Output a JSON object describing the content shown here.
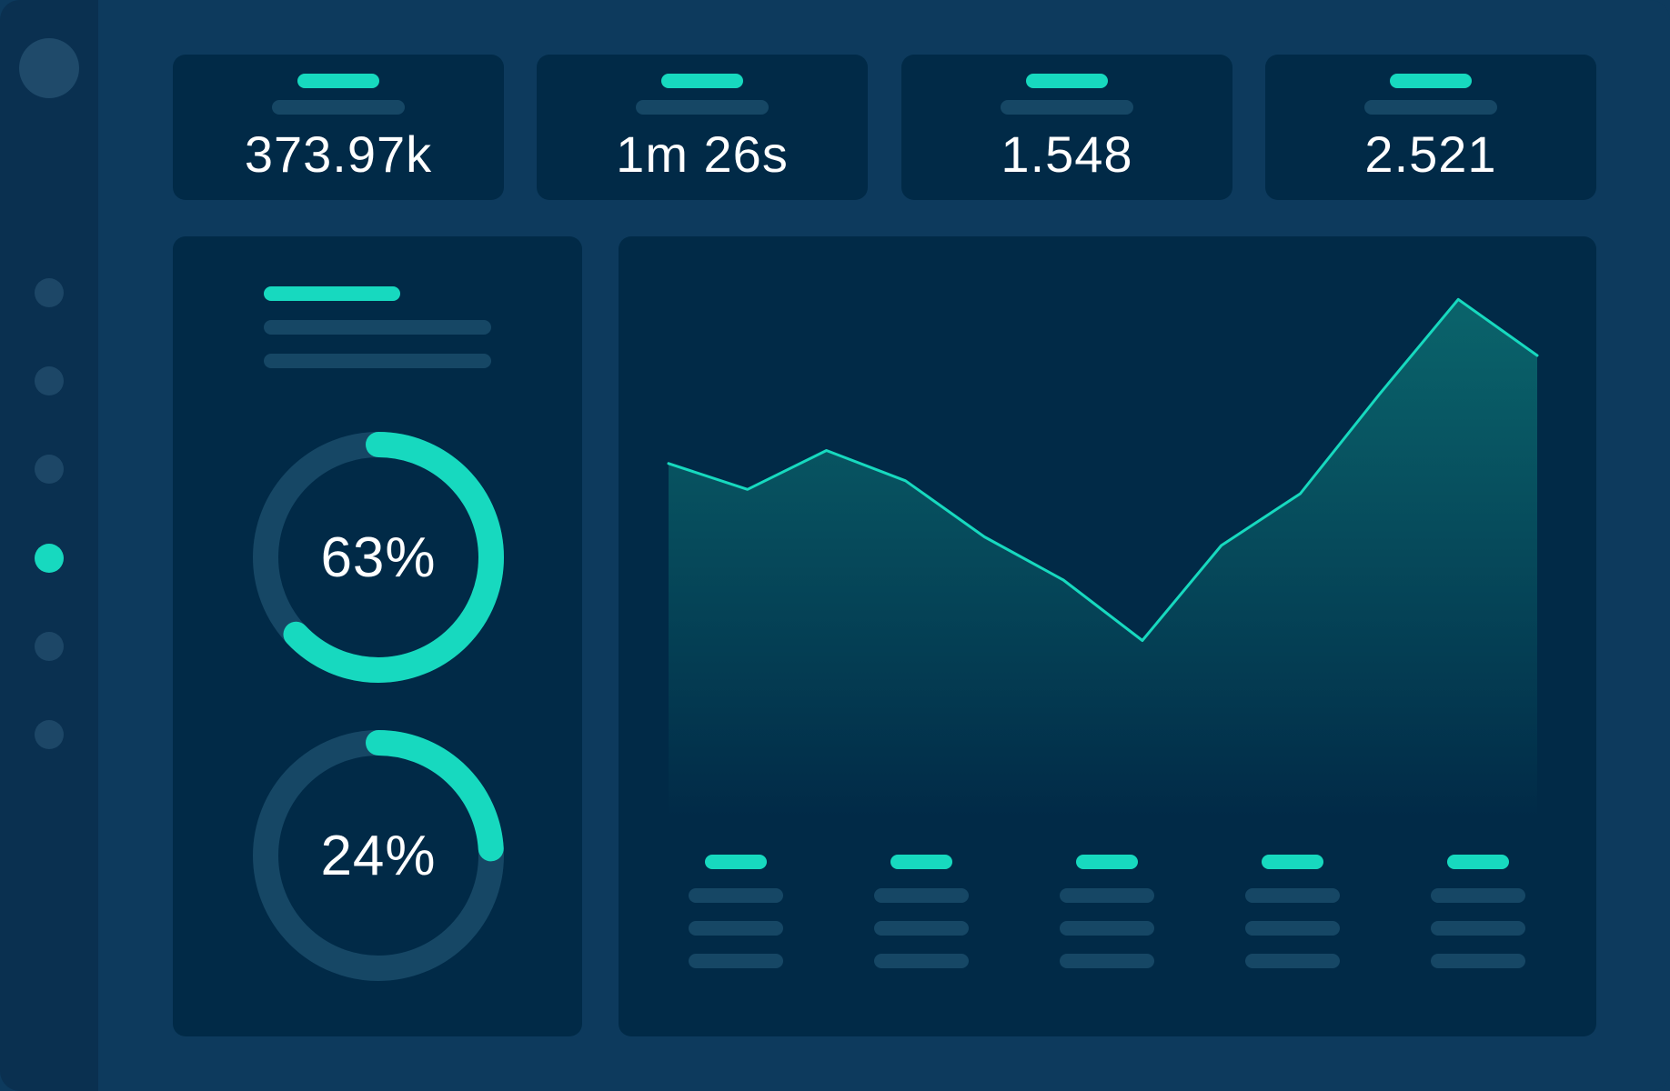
{
  "colors": {
    "background": "#0d3a5d",
    "sidebar": "#0a3050",
    "card": "#012a47",
    "accent": "#17d9bf",
    "muted": "#164765",
    "text": "#ffffff"
  },
  "sidebar": {
    "items": [
      {
        "icon": "nav-dot",
        "active": false
      },
      {
        "icon": "nav-dot",
        "active": false
      },
      {
        "icon": "nav-dot",
        "active": false
      },
      {
        "icon": "nav-dot",
        "active": true
      },
      {
        "icon": "nav-dot",
        "active": false
      },
      {
        "icon": "nav-dot",
        "active": false
      }
    ]
  },
  "kpis": [
    {
      "value": "373.97k"
    },
    {
      "value": "1m 26s"
    },
    {
      "value": "1.548"
    },
    {
      "value": "2.521"
    }
  ],
  "donuts": [
    {
      "label": "63%",
      "percent": 63
    },
    {
      "label": "24%",
      "percent": 24
    }
  ],
  "chart_data": {
    "type": "area",
    "title": "",
    "xlabel": "",
    "ylabel": "",
    "grid": false,
    "values": [
      0.59,
      0.53,
      0.62,
      0.55,
      0.42,
      0.32,
      0.18,
      0.4,
      0.52,
      0.75,
      0.97,
      0.84
    ],
    "ylim": [
      0,
      1
    ]
  }
}
